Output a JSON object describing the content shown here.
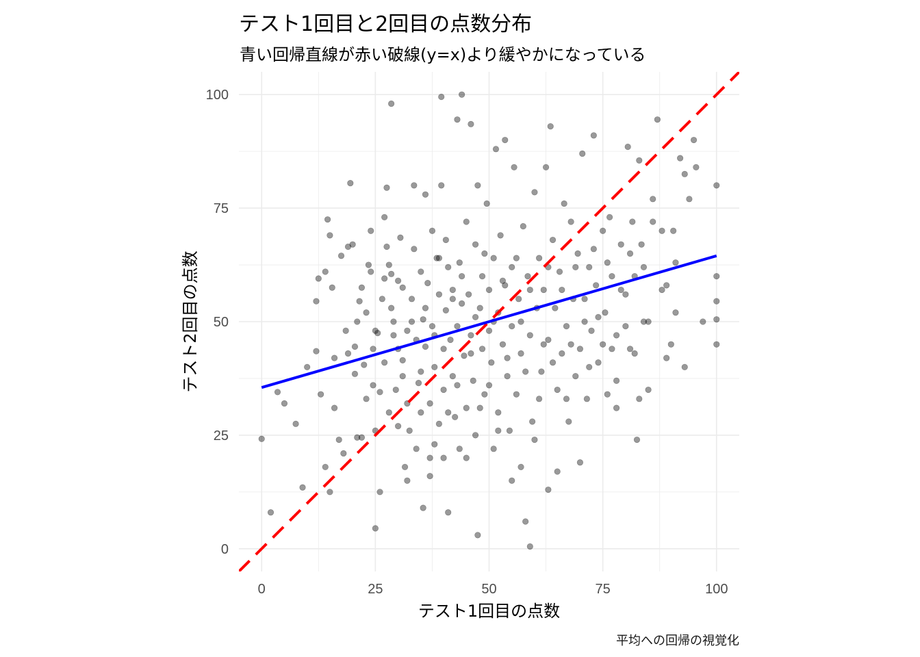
{
  "title": "テスト1回目と2回目の点数分布",
  "subtitle": "青い回帰直線が赤い破線(y=x)より緩やかになっている",
  "caption": "平均への回帰の視覚化",
  "colors": {
    "points": "#000000",
    "regression": "#0000ff",
    "identity": "#ff0000",
    "grid": "#ebebeb"
  },
  "chart_data": {
    "type": "scatter",
    "xlabel": "テスト1回目の点数",
    "ylabel": "テスト2回目の点数",
    "xlim": [
      -5,
      105
    ],
    "ylim": [
      -5,
      105
    ],
    "x_ticks": [
      0,
      25,
      50,
      75,
      100
    ],
    "y_ticks": [
      0,
      25,
      50,
      75,
      100
    ],
    "x_tick_labels": [
      "0",
      "25",
      "50",
      "75",
      "100"
    ],
    "y_tick_labels": [
      "0",
      "25",
      "50",
      "75",
      "100"
    ],
    "grid": true,
    "regression_line": {
      "intercept": 35.5,
      "slope": 0.29
    },
    "reference_line": {
      "intercept": 0,
      "slope": 1,
      "style": "dashed"
    },
    "points": [
      [
        0,
        24.2
      ],
      [
        2,
        8
      ],
      [
        3.5,
        34.5
      ],
      [
        5,
        32
      ],
      [
        7.5,
        27.5
      ],
      [
        9,
        13.5
      ],
      [
        12,
        54.5
      ],
      [
        12.5,
        59.5
      ],
      [
        12,
        43.5
      ],
      [
        13,
        34
      ],
      [
        14,
        61
      ],
      [
        14.5,
        72.5
      ],
      [
        15,
        69
      ],
      [
        15.5,
        57.5
      ],
      [
        16,
        42
      ],
      [
        16,
        31
      ],
      [
        17,
        24
      ],
      [
        17.5,
        64.5
      ],
      [
        18.5,
        48
      ],
      [
        19,
        66.5
      ],
      [
        19.5,
        80.5
      ],
      [
        20,
        67
      ],
      [
        20.5,
        44.5
      ],
      [
        20.5,
        38.5
      ],
      [
        21,
        24.5
      ],
      [
        21.5,
        54.5
      ],
      [
        22,
        57.5
      ],
      [
        22,
        24.5
      ],
      [
        22.5,
        40.5
      ],
      [
        23,
        52
      ],
      [
        23.5,
        62.5
      ],
      [
        24,
        70
      ],
      [
        24.5,
        44
      ],
      [
        24.5,
        36
      ],
      [
        25,
        4.5
      ],
      [
        25,
        48
      ],
      [
        25.5,
        47.5
      ],
      [
        26,
        34.5
      ],
      [
        26,
        12.5
      ],
      [
        26.5,
        55
      ],
      [
        27,
        73
      ],
      [
        27,
        59.5
      ],
      [
        27.5,
        79.5
      ],
      [
        27.5,
        66.5
      ],
      [
        28,
        62.5
      ],
      [
        28.5,
        60.5
      ],
      [
        28.5,
        53
      ],
      [
        28.5,
        98
      ],
      [
        29,
        47
      ],
      [
        29.5,
        35
      ],
      [
        30,
        44
      ],
      [
        30,
        27
      ],
      [
        30.5,
        68.5
      ],
      [
        31,
        57.5
      ],
      [
        31,
        41.5
      ],
      [
        31.5,
        18
      ],
      [
        32,
        48
      ],
      [
        32,
        32
      ],
      [
        32.5,
        26
      ],
      [
        33,
        55
      ],
      [
        33.5,
        80
      ],
      [
        33.5,
        66
      ],
      [
        34,
        46
      ],
      [
        34.5,
        36.5
      ],
      [
        35,
        61
      ],
      [
        35,
        30
      ],
      [
        35.5,
        9
      ],
      [
        35.5,
        50.5
      ],
      [
        36,
        78
      ],
      [
        36,
        44.5
      ],
      [
        36.5,
        58.5
      ],
      [
        37,
        32
      ],
      [
        37,
        16
      ],
      [
        37.5,
        70
      ],
      [
        37.5,
        49
      ],
      [
        38,
        23
      ],
      [
        38,
        40
      ],
      [
        38.5,
        64
      ],
      [
        39,
        56
      ],
      [
        39,
        27.5
      ],
      [
        39.5,
        99.5
      ],
      [
        39.5,
        80
      ],
      [
        40,
        44
      ],
      [
        40,
        35
      ],
      [
        40.5,
        52.5
      ],
      [
        40.5,
        68
      ],
      [
        41,
        62
      ],
      [
        41,
        8
      ],
      [
        41.5,
        46
      ],
      [
        42,
        57
      ],
      [
        42,
        38
      ],
      [
        42.5,
        29
      ],
      [
        43,
        94.5
      ],
      [
        43,
        49
      ],
      [
        43.5,
        63
      ],
      [
        43.5,
        22
      ],
      [
        44,
        100
      ],
      [
        44,
        54
      ],
      [
        44.5,
        42.5
      ],
      [
        45,
        72
      ],
      [
        45,
        31
      ],
      [
        45.5,
        56
      ],
      [
        46,
        93.5
      ],
      [
        46,
        47
      ],
      [
        46.5,
        37
      ],
      [
        47,
        67
      ],
      [
        47,
        25
      ],
      [
        47.5,
        3
      ],
      [
        47.5,
        80
      ],
      [
        48,
        53
      ],
      [
        48.5,
        44
      ],
      [
        48.5,
        60
      ],
      [
        49,
        34
      ],
      [
        49.5,
        76
      ],
      [
        50,
        57
      ],
      [
        50,
        48
      ],
      [
        50.5,
        41
      ],
      [
        51,
        64
      ],
      [
        51,
        22
      ],
      [
        51.5,
        88
      ],
      [
        52,
        52
      ],
      [
        52,
        30
      ],
      [
        52.5,
        69
      ],
      [
        53,
        45
      ],
      [
        53.5,
        90
      ],
      [
        53.5,
        58
      ],
      [
        54,
        38
      ],
      [
        54.5,
        26
      ],
      [
        55,
        62
      ],
      [
        55,
        49
      ],
      [
        55.5,
        84
      ],
      [
        56,
        34
      ],
      [
        56.5,
        55
      ],
      [
        57,
        43
      ],
      [
        57,
        18
      ],
      [
        57.5,
        71
      ],
      [
        58,
        6
      ],
      [
        58.5,
        60
      ],
      [
        59,
        47
      ],
      [
        59,
        0.5
      ],
      [
        59.5,
        28
      ],
      [
        60,
        78.5
      ],
      [
        60.5,
        53
      ],
      [
        61,
        64
      ],
      [
        61.5,
        39
      ],
      [
        62,
        57
      ],
      [
        62.5,
        84
      ],
      [
        63,
        46
      ],
      [
        63,
        13
      ],
      [
        63.5,
        93
      ],
      [
        64,
        68
      ],
      [
        64.5,
        53
      ],
      [
        65,
        35
      ],
      [
        65.5,
        61
      ],
      [
        66,
        43
      ],
      [
        66.5,
        76
      ],
      [
        67,
        49
      ],
      [
        67.5,
        28
      ],
      [
        68,
        72
      ],
      [
        68.5,
        55
      ],
      [
        69,
        38
      ],
      [
        69.5,
        65
      ],
      [
        70,
        44
      ],
      [
        70.5,
        87
      ],
      [
        71,
        55
      ],
      [
        71.5,
        33
      ],
      [
        72,
        62
      ],
      [
        72.5,
        48
      ],
      [
        73,
        91
      ],
      [
        73.5,
        58
      ],
      [
        74,
        41
      ],
      [
        75,
        70
      ],
      [
        75.5,
        52
      ],
      [
        76,
        34
      ],
      [
        76.5,
        73
      ],
      [
        77,
        60
      ],
      [
        78,
        47
      ],
      [
        78,
        31
      ],
      [
        79,
        67
      ],
      [
        80,
        56
      ],
      [
        80.5,
        88.5
      ],
      [
        81,
        44
      ],
      [
        81.5,
        72
      ],
      [
        82,
        60
      ],
      [
        82.5,
        24
      ],
      [
        83,
        85.5
      ],
      [
        83.5,
        67
      ],
      [
        84,
        50
      ],
      [
        85,
        35
      ],
      [
        86,
        77
      ],
      [
        87,
        94.5
      ],
      [
        88,
        70
      ],
      [
        89,
        58
      ],
      [
        90,
        45
      ],
      [
        90.5,
        70
      ],
      [
        91,
        63
      ],
      [
        92,
        86
      ],
      [
        93,
        40
      ],
      [
        93,
        82.5
      ],
      [
        94,
        77
      ],
      [
        95,
        90
      ],
      [
        95.5,
        84
      ],
      [
        100,
        80
      ],
      [
        100,
        60
      ],
      [
        100,
        54.5
      ],
      [
        100,
        50.5
      ],
      [
        100,
        45
      ],
      [
        10,
        40
      ],
      [
        14,
        18
      ],
      [
        15,
        12.5
      ],
      [
        18,
        21
      ],
      [
        19,
        43
      ],
      [
        21,
        50
      ],
      [
        23,
        33
      ],
      [
        24,
        61
      ],
      [
        25,
        26
      ],
      [
        27,
        41
      ],
      [
        28,
        30
      ],
      [
        29,
        50
      ],
      [
        30,
        59
      ],
      [
        31,
        38
      ],
      [
        32,
        15
      ],
      [
        33,
        50
      ],
      [
        34,
        22
      ],
      [
        35,
        39
      ],
      [
        36,
        53
      ],
      [
        37,
        20
      ],
      [
        38,
        47
      ],
      [
        39,
        64
      ],
      [
        40,
        20
      ],
      [
        41,
        30
      ],
      [
        42,
        55
      ],
      [
        43,
        36
      ],
      [
        44,
        60
      ],
      [
        45,
        20
      ],
      [
        46,
        43
      ],
      [
        47,
        51
      ],
      [
        48,
        31
      ],
      [
        49,
        65
      ],
      [
        50,
        36
      ],
      [
        51,
        50
      ],
      [
        52,
        26
      ],
      [
        53,
        59
      ],
      [
        54,
        42
      ],
      [
        55,
        15
      ],
      [
        56,
        64
      ],
      [
        57,
        50
      ],
      [
        58,
        39
      ],
      [
        59,
        57
      ],
      [
        60,
        24
      ],
      [
        61,
        33
      ],
      [
        62,
        45
      ],
      [
        63,
        62
      ],
      [
        64,
        41
      ],
      [
        65,
        17
      ],
      [
        66,
        57
      ],
      [
        67,
        33
      ],
      [
        68,
        45
      ],
      [
        69,
        62
      ],
      [
        70,
        19
      ],
      [
        71,
        50
      ],
      [
        72,
        40
      ],
      [
        73,
        66
      ],
      [
        74,
        51
      ],
      [
        75,
        45
      ],
      [
        76,
        63
      ],
      [
        77,
        44
      ],
      [
        78,
        37
      ],
      [
        79,
        57
      ],
      [
        80,
        49
      ],
      [
        81,
        65
      ],
      [
        82,
        43
      ],
      [
        83,
        33
      ],
      [
        84,
        62
      ],
      [
        85,
        50
      ],
      [
        86,
        72
      ],
      [
        88,
        57
      ],
      [
        89,
        42
      ],
      [
        91,
        52
      ],
      [
        97,
        50
      ]
    ]
  }
}
